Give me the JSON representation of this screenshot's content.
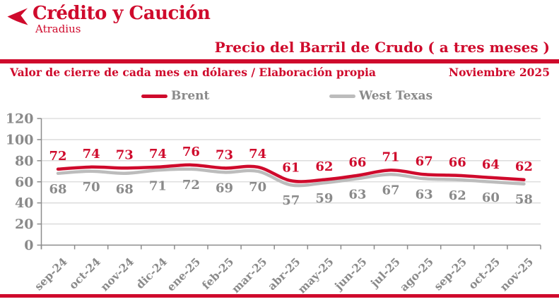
{
  "header": {
    "logo_title": "Crédito y Caución",
    "logo_subtitle": "Atradius",
    "title": "Precio del Barril de Crudo ( a tres meses )",
    "subtitle_left": "Valor de cierre de cada mes en dólares / Elaboración propia",
    "subtitle_right": "Noviembre 2025"
  },
  "colors": {
    "brand_red": "#cf0a2c",
    "west_texas_gray": "#bcbcbc",
    "gray_text": "#8a8a8a",
    "gridline": "#d9d9d9",
    "axis": "#8c8c8c"
  },
  "legend": [
    {
      "label": "Brent",
      "color": "#cf0a2c"
    },
    {
      "label": "West Texas",
      "color": "#bcbcbc"
    }
  ],
  "chart_data": {
    "type": "line",
    "title": "Precio del Barril de Crudo ( a tres meses )",
    "subtitle": "Valor de cierre de cada mes en dólares / Elaboración propia",
    "period_label": "Noviembre 2025",
    "categories": [
      "sep-24",
      "oct-24",
      "nov-24",
      "dic-24",
      "ene-25",
      "feb-25",
      "mar-25",
      "abr-25",
      "may-25",
      "jun-25",
      "jul-25",
      "ago-25",
      "sep-25",
      "oct-25",
      "nov-25"
    ],
    "series": [
      {
        "name": "Brent",
        "color": "#cf0a2c",
        "values": [
          72,
          74,
          73,
          74,
          76,
          73,
          74,
          61,
          62,
          66,
          71,
          67,
          66,
          64,
          62
        ]
      },
      {
        "name": "West Texas",
        "color": "#bcbcbc",
        "values": [
          68,
          70,
          68,
          71,
          72,
          69,
          70,
          57,
          59,
          63,
          67,
          63,
          62,
          60,
          58
        ]
      }
    ],
    "ylim": [
      0,
      120
    ],
    "yticks": [
      0,
      20,
      40,
      60,
      80,
      100,
      120
    ],
    "grid": true,
    "legend_position": "top",
    "data_labels": true
  }
}
